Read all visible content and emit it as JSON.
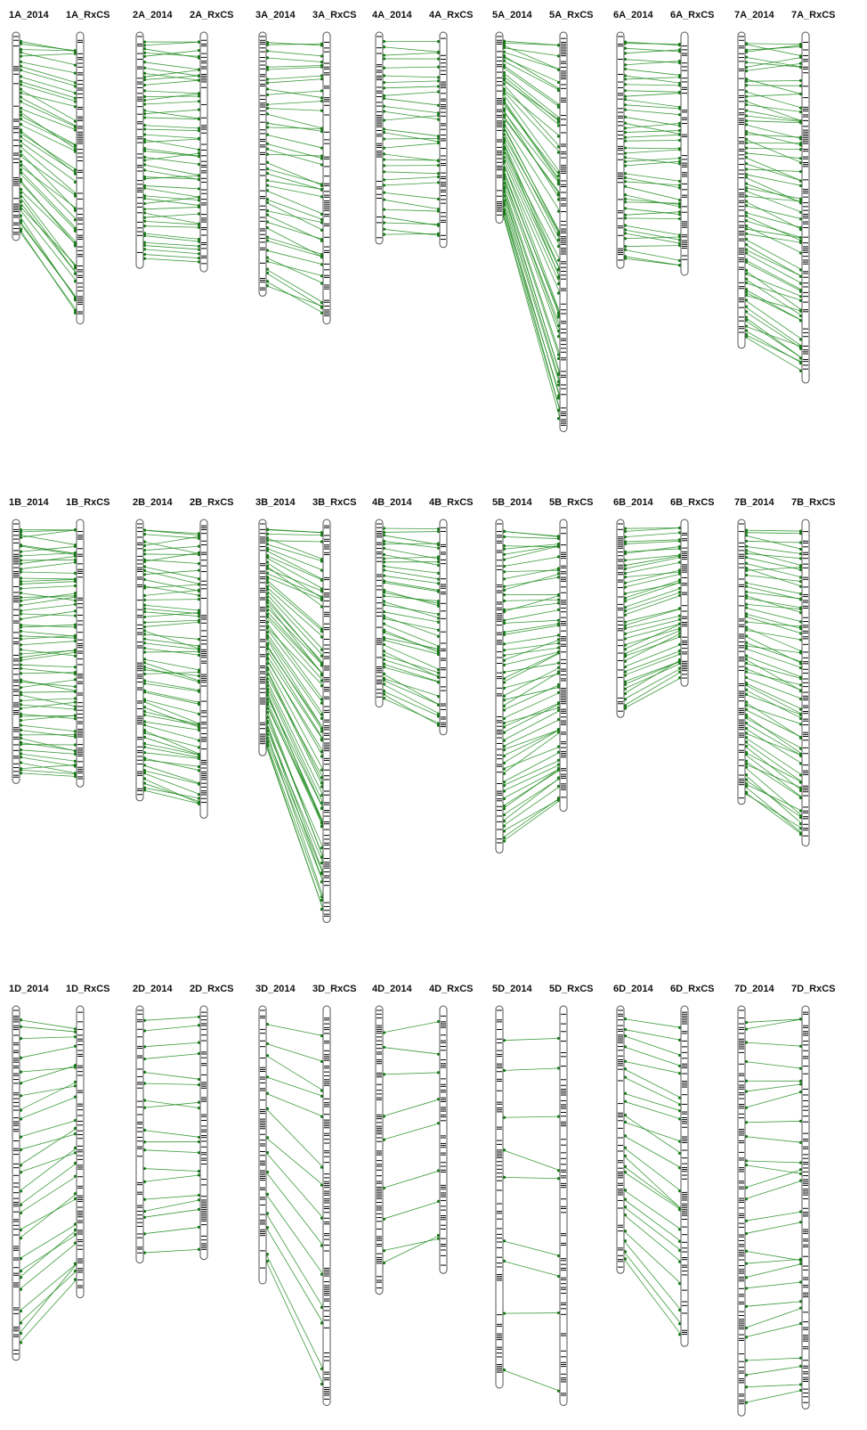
{
  "colors": {
    "link": "#1b8a1b",
    "dot": "#137a13",
    "band": "#000000",
    "outline": "#555555"
  },
  "groups": [
    {
      "id": "1A",
      "left_label": "1A_2014",
      "right_label": "1A_RxCS",
      "left_len": 0.6,
      "right_len": 0.84,
      "links": 44
    },
    {
      "id": "2A",
      "left_label": "2A_2014",
      "right_label": "2A_RxCS",
      "left_len": 0.68,
      "right_len": 0.69,
      "links": 48
    },
    {
      "id": "3A",
      "left_label": "3A_2014",
      "right_label": "3A_RxCS",
      "left_len": 0.76,
      "right_len": 0.84,
      "links": 40
    },
    {
      "id": "4A",
      "left_label": "4A_2014",
      "right_label": "4A_RxCS",
      "left_len": 0.61,
      "right_len": 0.62,
      "links": 30
    },
    {
      "id": "5A",
      "left_label": "5A_2014",
      "right_label": "5A_RxCS",
      "left_len": 0.55,
      "right_len": 1.15,
      "links": 55
    },
    {
      "id": "6A",
      "left_label": "6A_2014",
      "right_label": "6A_RxCS",
      "left_len": 0.68,
      "right_len": 0.7,
      "links": 44
    },
    {
      "id": "7A",
      "left_label": "7A_2014",
      "right_label": "7A_RxCS",
      "left_len": 0.91,
      "right_len": 1.01,
      "links": 64
    },
    {
      "id": "1B",
      "left_label": "1B_2014",
      "right_label": "1B_RxCS",
      "left_len": 0.76,
      "right_len": 0.77,
      "links": 60
    },
    {
      "id": "2B",
      "left_label": "2B_2014",
      "right_label": "2B_RxCS",
      "left_len": 0.81,
      "right_len": 0.86,
      "links": 60
    },
    {
      "id": "3B",
      "left_label": "3B_2014",
      "right_label": "3B_RxCS",
      "left_len": 0.68,
      "right_len": 1.16,
      "links": 64
    },
    {
      "id": "4B",
      "left_label": "4B_2014",
      "right_label": "4B_RxCS",
      "left_len": 0.54,
      "right_len": 0.62,
      "links": 40
    },
    {
      "id": "5B",
      "left_label": "5B_2014",
      "right_label": "5B_RxCS",
      "left_len": 0.96,
      "right_len": 0.84,
      "links": 56
    },
    {
      "id": "6B",
      "left_label": "6B_2014",
      "right_label": "6B_RxCS",
      "left_len": 0.57,
      "right_len": 0.48,
      "links": 40
    },
    {
      "id": "7B",
      "left_label": "7B_2014",
      "right_label": "7B_RxCS",
      "left_len": 0.82,
      "right_len": 0.94,
      "links": 60
    },
    {
      "id": "1D",
      "left_label": "1D_2014",
      "right_label": "1D_RxCS",
      "left_len": 1.02,
      "right_len": 0.84,
      "links": 26
    },
    {
      "id": "2D",
      "left_label": "2D_2014",
      "right_label": "2D_RxCS",
      "left_len": 0.74,
      "right_len": 0.73,
      "links": 18
    },
    {
      "id": "3D",
      "left_label": "3D_2014",
      "right_label": "3D_RxCS",
      "left_len": 0.8,
      "right_len": 1.15,
      "links": 14
    },
    {
      "id": "4D",
      "left_label": "4D_2014",
      "right_label": "4D_RxCS",
      "left_len": 0.83,
      "right_len": 0.77,
      "links": 9
    },
    {
      "id": "5D",
      "left_label": "5D_2014",
      "right_label": "5D_RxCS",
      "left_len": 1.1,
      "right_len": 1.15,
      "links": 9
    },
    {
      "id": "6D",
      "left_label": "6D_2014",
      "right_label": "6D_RxCS",
      "left_len": 0.77,
      "right_len": 0.98,
      "links": 24
    },
    {
      "id": "7D",
      "left_label": "7D_2014",
      "right_label": "7D_RxCS",
      "left_len": 1.18,
      "right_len": 1.16,
      "links": 26
    }
  ]
}
